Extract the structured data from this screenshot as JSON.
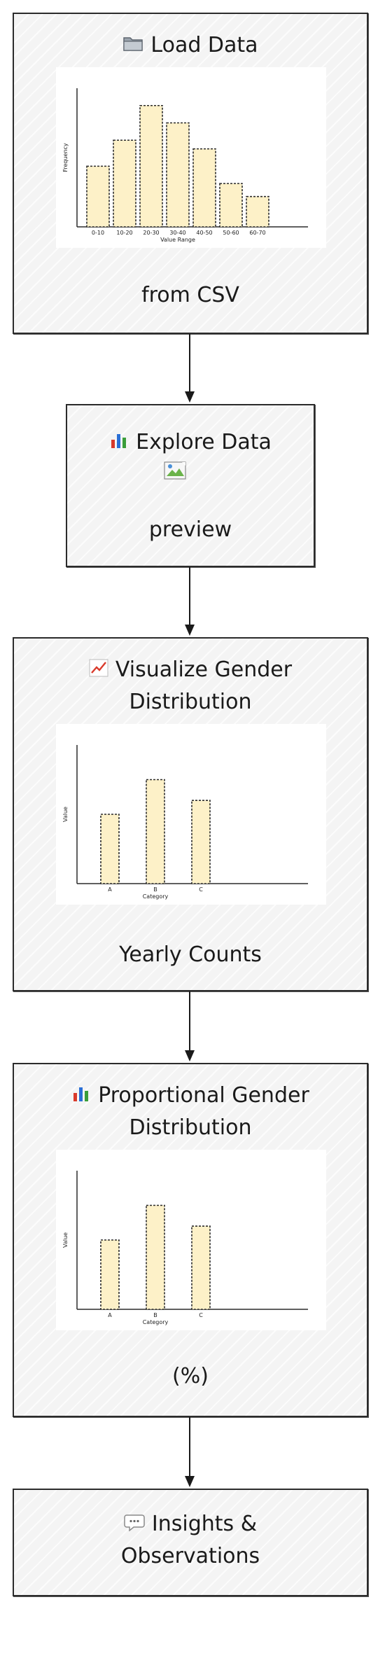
{
  "nodes": [
    {
      "id": "load",
      "icon": "folder-icon",
      "title_lines": [
        "Load Data"
      ],
      "caption": "from CSV"
    },
    {
      "id": "explore",
      "icon": "bar-chart-icon",
      "title_lines": [
        "Explore Data"
      ],
      "caption": "preview",
      "image": "broken-image-icon"
    },
    {
      "id": "visualize",
      "icon": "line-chart-icon",
      "title_lines": [
        "Visualize Gender",
        "Distribution"
      ],
      "caption": "Yearly Counts"
    },
    {
      "id": "proportional",
      "icon": "bar-chart-icon",
      "title_lines": [
        "Proportional Gender",
        "Distribution"
      ],
      "caption": "(%)"
    },
    {
      "id": "insights",
      "icon": "speech-bubble-icon",
      "title_lines": [
        "Insights &",
        "Observations"
      ],
      "caption": ""
    }
  ],
  "colors": {
    "bar_fill": "#fdf1c8",
    "stroke": "#2b2b2b",
    "node_bg": "#f4f4f4"
  },
  "chart_data": [
    {
      "type": "bar",
      "title": "",
      "xlabel": "Value Range",
      "ylabel": "Frequency",
      "categories": [
        "0-10",
        "10-20",
        "20-30",
        "30-40",
        "40-50",
        "50-60",
        "60-70"
      ],
      "values": [
        7,
        10,
        14,
        12,
        9,
        5,
        3.5
      ],
      "ylim": [
        0,
        16
      ],
      "grid": false
    },
    {
      "type": "bar",
      "title": "",
      "xlabel": "Category",
      "ylabel": "Value",
      "categories": [
        "A",
        "B",
        "C"
      ],
      "values": [
        10,
        15,
        12
      ],
      "ylim": [
        0,
        20
      ],
      "grid": false
    },
    {
      "type": "bar",
      "title": "",
      "xlabel": "Category",
      "ylabel": "Value",
      "categories": [
        "A",
        "B",
        "C"
      ],
      "values": [
        10,
        15,
        12
      ],
      "ylim": [
        0,
        20
      ],
      "grid": false
    }
  ]
}
